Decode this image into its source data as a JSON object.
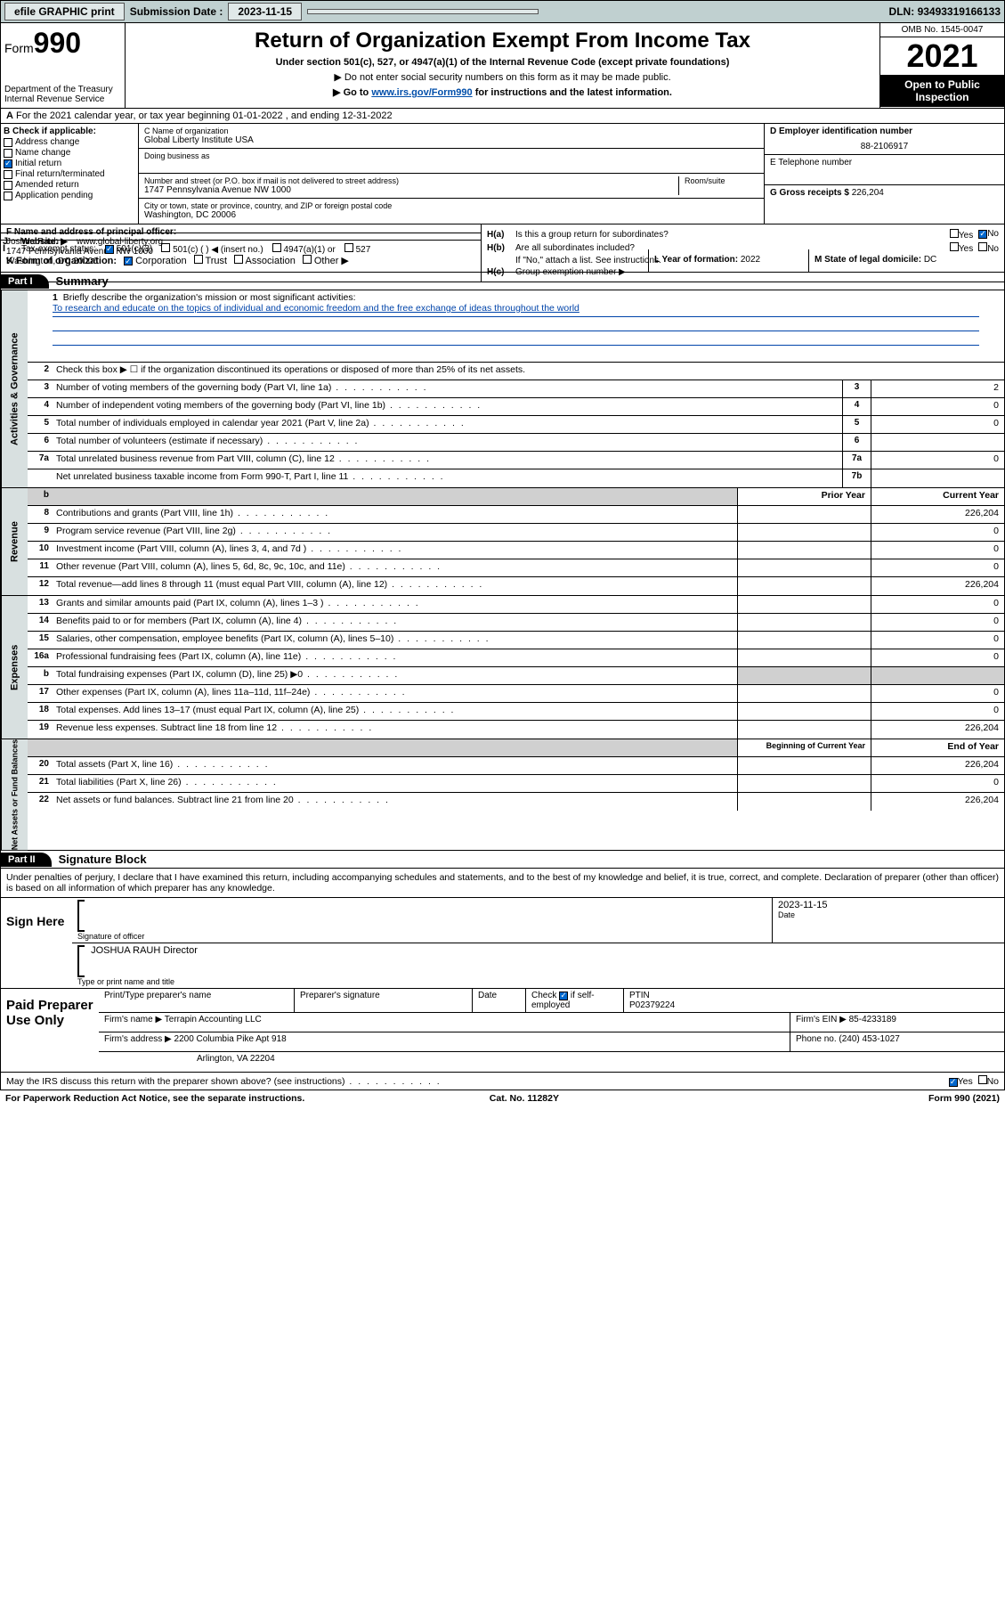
{
  "topbar": {
    "efile": "efile GRAPHIC print",
    "submission_label": "Submission Date :",
    "submission_date": "2023-11-15",
    "dln_label": "DLN:",
    "dln": "93493319166133"
  },
  "header": {
    "form_label": "Form",
    "form_num": "990",
    "dept": "Department of the Treasury",
    "irs": "Internal Revenue Service",
    "title": "Return of Organization Exempt From Income Tax",
    "sub1": "Under section 501(c), 527, or 4947(a)(1) of the Internal Revenue Code (except private foundations)",
    "sub2": "▶ Do not enter social security numbers on this form as it may be made public.",
    "sub3_pre": "▶ Go to ",
    "sub3_link": "www.irs.gov/Form990",
    "sub3_post": " for instructions and the latest information.",
    "omb": "OMB No. 1545-0047",
    "year": "2021",
    "inspect": "Open to Public Inspection"
  },
  "row_a": {
    "text": "For the 2021 calendar year, or tax year beginning 01-01-2022   , and ending 12-31-2022"
  },
  "section_b": {
    "label": "B Check if applicable:",
    "items": [
      {
        "label": "Address change",
        "checked": false
      },
      {
        "label": "Name change",
        "checked": false
      },
      {
        "label": "Initial return",
        "checked": true
      },
      {
        "label": "Final return/terminated",
        "checked": false
      },
      {
        "label": "Amended return",
        "checked": false
      },
      {
        "label": "Application pending",
        "checked": false
      }
    ]
  },
  "section_c": {
    "name_label": "C Name of organization",
    "name": "Global Liberty Institute USA",
    "dba_label": "Doing business as",
    "dba": "",
    "addr_label": "Number and street (or P.O. box if mail is not delivered to street address)",
    "addr": "1747 Pennsylvania Avenue NW 1000",
    "room_label": "Room/suite",
    "city_label": "City or town, state or province, country, and ZIP or foreign postal code",
    "city": "Washington, DC  20006"
  },
  "section_d": {
    "label": "D Employer identification number",
    "value": "88-2106917"
  },
  "section_e": {
    "label": "E Telephone number",
    "value": ""
  },
  "section_g": {
    "label": "G Gross receipts $",
    "value": "226,204"
  },
  "section_f": {
    "label": "F Name and address of principal officer:",
    "name": "Joshua Rauh",
    "addr1": "1747 Pennsylvania Avenue NW 1000",
    "addr2": "Washington, DC  20006"
  },
  "section_h": {
    "ha_k": "H(a)",
    "ha_t": "Is this a group return for subordinates?",
    "ha_yes": false,
    "ha_no": true,
    "hb_k": "H(b)",
    "hb_t": "Are all subordinates included?",
    "hb_yes": false,
    "hb_no": false,
    "hb_note": "If \"No,\" attach a list. See instructions.",
    "hc_k": "H(c)",
    "hc_t": "Group exemption number ▶"
  },
  "row_i": {
    "lead": "I",
    "label": "Tax-exempt status:",
    "c501c3": true,
    "c501c": false,
    "c501c_label": "501(c) (  ) ◀ (insert no.)",
    "c4947": false,
    "c4947_label": "4947(a)(1) or",
    "c527": false,
    "c527_label": "527"
  },
  "row_j": {
    "lead": "J",
    "label": "Website: ▶",
    "value": "www.global-liberty.org"
  },
  "row_k": {
    "label": "K Form of organization:",
    "corp": true,
    "trust": false,
    "assoc": false,
    "other": false,
    "l_label": "L Year of formation:",
    "l_val": "2022",
    "m_label": "M State of legal domicile:",
    "m_val": "DC"
  },
  "part1": {
    "hdr": "Part I",
    "title": "Summary"
  },
  "summary": {
    "tabs": [
      "Activities & Governance",
      "Revenue",
      "Expenses",
      "Net Assets or Fund Balances"
    ],
    "l1_label": "Briefly describe the organization's mission or most significant activities:",
    "l1_text": "To research and educate on the topics of individual and economic freedom and the free exchange of ideas throughout the world",
    "l2": "Check this box ▶ ☐  if the organization discontinued its operations or disposed of more than 25% of its net assets.",
    "rows_gov": [
      {
        "n": "3",
        "d": "Number of voting members of the governing body (Part VI, line 1a)",
        "box": "3",
        "v": "2"
      },
      {
        "n": "4",
        "d": "Number of independent voting members of the governing body (Part VI, line 1b)",
        "box": "4",
        "v": "0"
      },
      {
        "n": "5",
        "d": "Total number of individuals employed in calendar year 2021 (Part V, line 2a)",
        "box": "5",
        "v": "0"
      },
      {
        "n": "6",
        "d": "Total number of volunteers (estimate if necessary)",
        "box": "6",
        "v": ""
      },
      {
        "n": "7a",
        "d": "Total unrelated business revenue from Part VIII, column (C), line 12",
        "box": "7a",
        "v": "0"
      },
      {
        "n": "",
        "d": "Net unrelated business taxable income from Form 990-T, Part I, line 11",
        "box": "7b",
        "v": ""
      }
    ],
    "col_hdr_prior": "Prior Year",
    "col_hdr_curr": "Current Year",
    "rows_rev": [
      {
        "n": "8",
        "d": "Contributions and grants (Part VIII, line 1h)",
        "p": "",
        "c": "226,204"
      },
      {
        "n": "9",
        "d": "Program service revenue (Part VIII, line 2g)",
        "p": "",
        "c": "0"
      },
      {
        "n": "10",
        "d": "Investment income (Part VIII, column (A), lines 3, 4, and 7d )",
        "p": "",
        "c": "0"
      },
      {
        "n": "11",
        "d": "Other revenue (Part VIII, column (A), lines 5, 6d, 8c, 9c, 10c, and 11e)",
        "p": "",
        "c": "0"
      },
      {
        "n": "12",
        "d": "Total revenue—add lines 8 through 11 (must equal Part VIII, column (A), line 12)",
        "p": "",
        "c": "226,204"
      }
    ],
    "rows_exp": [
      {
        "n": "13",
        "d": "Grants and similar amounts paid (Part IX, column (A), lines 1–3 )",
        "p": "",
        "c": "0"
      },
      {
        "n": "14",
        "d": "Benefits paid to or for members (Part IX, column (A), line 4)",
        "p": "",
        "c": "0"
      },
      {
        "n": "15",
        "d": "Salaries, other compensation, employee benefits (Part IX, column (A), lines 5–10)",
        "p": "",
        "c": "0"
      },
      {
        "n": "16a",
        "d": "Professional fundraising fees (Part IX, column (A), line 11e)",
        "p": "",
        "c": "0"
      },
      {
        "n": "b",
        "d": "Total fundraising expenses (Part IX, column (D), line 25) ▶0",
        "p": "shade",
        "c": "shade"
      },
      {
        "n": "17",
        "d": "Other expenses (Part IX, column (A), lines 11a–11d, 11f–24e)",
        "p": "",
        "c": "0"
      },
      {
        "n": "18",
        "d": "Total expenses. Add lines 13–17 (must equal Part IX, column (A), line 25)",
        "p": "",
        "c": "0"
      },
      {
        "n": "19",
        "d": "Revenue less expenses. Subtract line 18 from line 12",
        "p": "",
        "c": "226,204"
      }
    ],
    "col_hdr_beg": "Beginning of Current Year",
    "col_hdr_end": "End of Year",
    "rows_net": [
      {
        "n": "20",
        "d": "Total assets (Part X, line 16)",
        "p": "",
        "c": "226,204"
      },
      {
        "n": "21",
        "d": "Total liabilities (Part X, line 26)",
        "p": "",
        "c": "0"
      },
      {
        "n": "22",
        "d": "Net assets or fund balances. Subtract line 21 from line 20",
        "p": "",
        "c": "226,204"
      }
    ]
  },
  "part2": {
    "hdr": "Part II",
    "title": "Signature Block",
    "intro": "Under penalties of perjury, I declare that I have examined this return, including accompanying schedules and statements, and to the best of my knowledge and belief, it is true, correct, and complete. Declaration of preparer (other than officer) is based on all information of which preparer has any knowledge."
  },
  "sign": {
    "left": "Sign Here",
    "sig_label": "Signature of officer",
    "date": "2023-11-15",
    "date_label": "Date",
    "name": "JOSHUA RAUH  Director",
    "name_label": "Type or print name and title"
  },
  "prep": {
    "left": "Paid Preparer Use Only",
    "h1": "Print/Type preparer's name",
    "h2": "Preparer's signature",
    "h3": "Date",
    "h4_pre": "Check",
    "h4_post": "if self-employed",
    "h4_checked": true,
    "h5": "PTIN",
    "ptin": "P02379224",
    "firm_name_l": "Firm's name   ▶",
    "firm_name": "Terrapin Accounting LLC",
    "firm_ein_l": "Firm's EIN ▶",
    "firm_ein": "85-4233189",
    "firm_addr_l": "Firm's address ▶",
    "firm_addr1": "2200 Columbia Pike Apt 918",
    "firm_addr2": "Arlington, VA  22204",
    "phone_l": "Phone no.",
    "phone": "(240) 453-1027"
  },
  "foot": {
    "q": "May the IRS discuss this return with the preparer shown above? (see instructions)",
    "yes": true,
    "no": false,
    "pra": "For Paperwork Reduction Act Notice, see the separate instructions.",
    "cat": "Cat. No. 11282Y",
    "form": "Form 990 (2021)"
  }
}
